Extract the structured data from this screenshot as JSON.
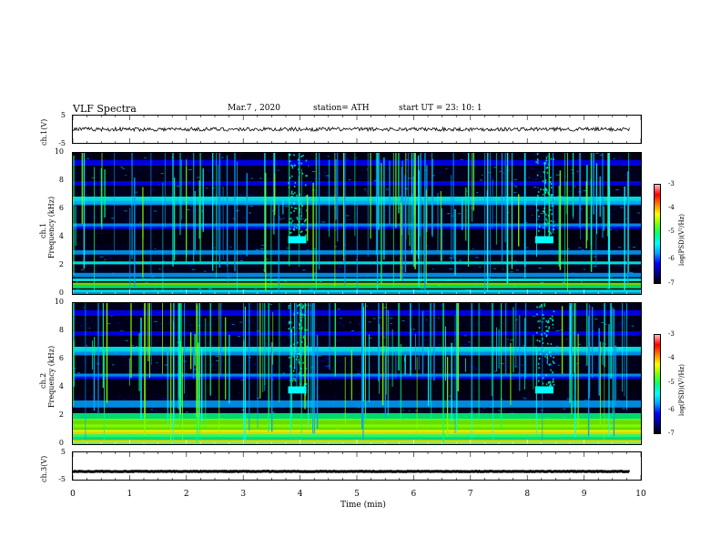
{
  "header": {
    "title": "VLF  Spectra",
    "date": "Mar.7  , 2020",
    "station": "station= ATH",
    "start": "start  UT  =    23: 10: 1"
  },
  "chart_data": [
    {
      "type": "line",
      "name": "ch1-waveform",
      "ylabel": "ch.1(V)",
      "ylim": [
        -5,
        5
      ],
      "yticks": [
        "5",
        "-5"
      ],
      "xlim": [
        0,
        10
      ],
      "baseline": 0,
      "color": "#000000"
    },
    {
      "type": "heatmap",
      "name": "ch1-spectrogram",
      "ylabel_line1": "ch.1",
      "ylabel_line2": "Frequency  (kHz)",
      "ylim": [
        0,
        10
      ],
      "yticks": [
        "10",
        "8",
        "6",
        "4",
        "2",
        "0"
      ],
      "xlim": [
        0,
        10
      ],
      "colorbar": {
        "min": -7,
        "max": -3,
        "ticks": [
          "-3",
          "-4",
          "-5",
          "-6",
          "-7"
        ],
        "label": "log(PSD)(V²/Hz)"
      }
    },
    {
      "type": "heatmap",
      "name": "ch2-spectrogram",
      "ylabel_line1": "ch.2",
      "ylabel_line2": "Frequency  (kHz)",
      "ylim": [
        0,
        10
      ],
      "yticks": [
        "10",
        "8",
        "6",
        "4",
        "2",
        "0"
      ],
      "xlim": [
        0,
        10
      ],
      "colorbar": {
        "min": -7,
        "max": -3,
        "ticks": [
          "-3",
          "-4",
          "-5",
          "-6",
          "-7"
        ],
        "label": "log(PSD)(V²/Hz)"
      }
    },
    {
      "type": "line",
      "name": "ch3-waveform",
      "ylabel": "ch.3(V)",
      "ylim": [
        -5,
        5
      ],
      "yticks": [
        "5",
        "-5"
      ],
      "xlim": [
        0,
        10
      ],
      "baseline": -2,
      "color": "#000000"
    }
  ],
  "xaxis": {
    "label": "Time  (min)",
    "ticks": [
      "0",
      "1",
      "2",
      "3",
      "4",
      "5",
      "6",
      "7",
      "8",
      "9",
      "10"
    ]
  },
  "colors": {
    "colormap": [
      "#000000",
      "#00008b",
      "#0000ff",
      "#00a0ff",
      "#00ffff",
      "#00ff80",
      "#80ff00",
      "#ffff00",
      "#ff8000",
      "#ff0000",
      "#ffc0c0"
    ]
  }
}
